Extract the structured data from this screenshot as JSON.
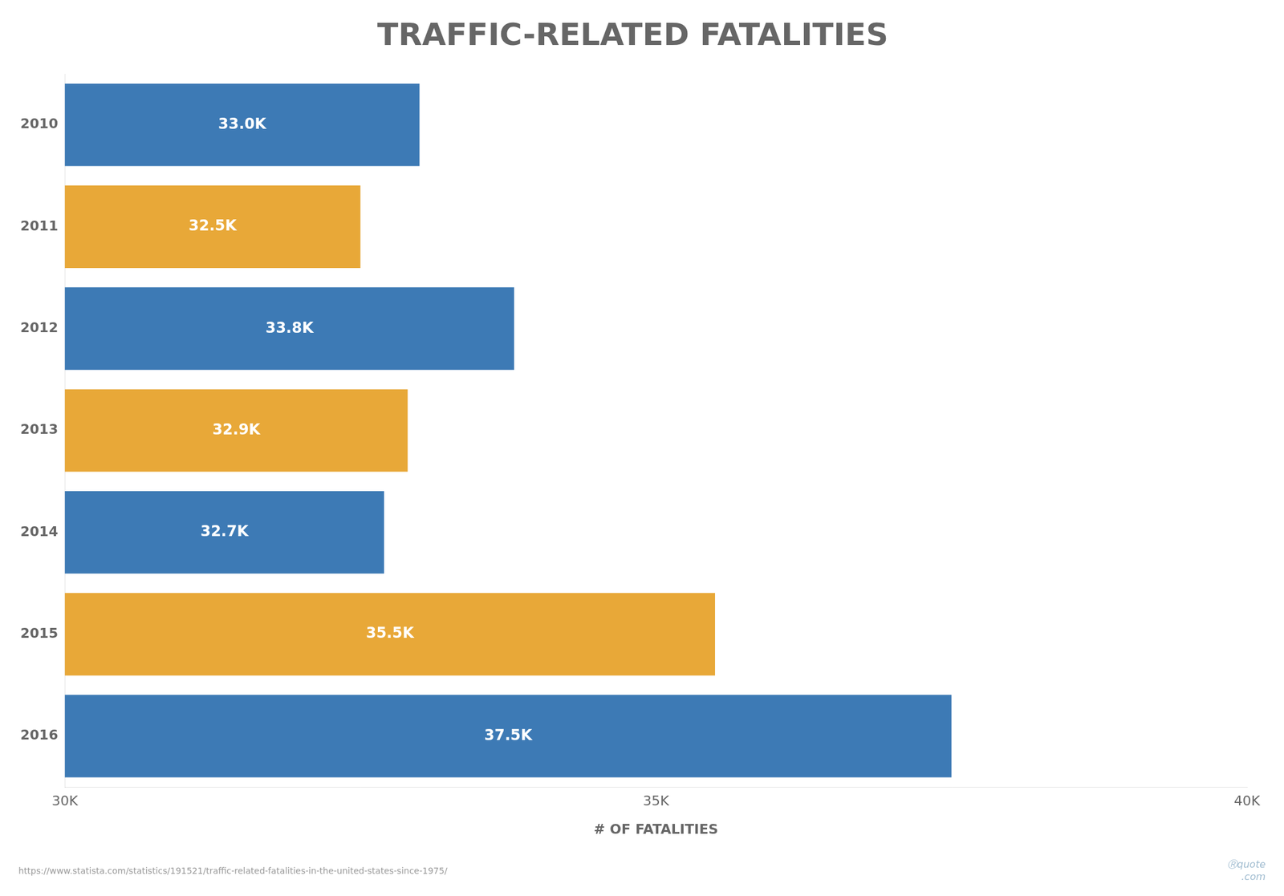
{
  "chart_data": {
    "type": "bar",
    "orientation": "horizontal",
    "title": "TRAFFIC-RELATED FATALITIES",
    "categories": [
      "2010",
      "2011",
      "2012",
      "2013",
      "2014",
      "2015",
      "2016"
    ],
    "values": [
      33000,
      32500,
      33800,
      32900,
      32700,
      35500,
      37500
    ],
    "value_labels": [
      "33.0K",
      "32.5K",
      "33.8K",
      "32.9K",
      "32.7K",
      "35.5K",
      "37.5K"
    ],
    "data_labels": true,
    "colors": [
      "#3d7ab5",
      "#e8a838",
      "#3d7ab5",
      "#e8a838",
      "#3d7ab5",
      "#e8a838",
      "#3d7ab5"
    ],
    "x_label": "# OF FATALITIES",
    "xlim": [
      30000,
      40000
    ],
    "xticks": [
      {
        "value": 30000,
        "label": "30K"
      },
      {
        "value": 35000,
        "label": "35K"
      },
      {
        "value": 40000,
        "label": "40K"
      }
    ],
    "annotations": [
      "https://www.statista.com/statistics/191521/traffic-related-fatalities-in-the-united-states-since-1975/",
      "Ⓡquote\n  .com"
    ],
    "grid": false,
    "tick_labels": true
  }
}
